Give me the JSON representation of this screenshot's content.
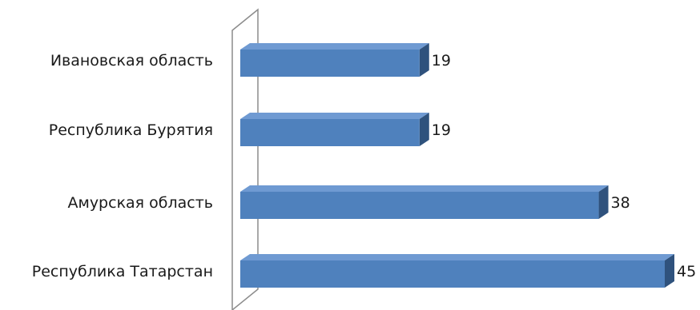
{
  "chart_data": {
    "type": "bar",
    "orientation": "horizontal",
    "style": "3d",
    "categories": [
      "Ивановская область",
      "Республика Бурятия",
      "Амурская область",
      "Республика Татарстан"
    ],
    "values": [
      19,
      19,
      38,
      45
    ],
    "data_labels": [
      "19",
      "19",
      "38",
      "45"
    ],
    "title": "",
    "xlabel": "",
    "ylabel": "",
    "xlim": [
      0,
      45
    ],
    "grid": false,
    "legend": "none",
    "colors": {
      "bar_front": "#4f81bd",
      "bar_top": "#6f9ad2",
      "bar_side": "#2f527d",
      "wall_stroke": "#8c8c8c"
    }
  }
}
